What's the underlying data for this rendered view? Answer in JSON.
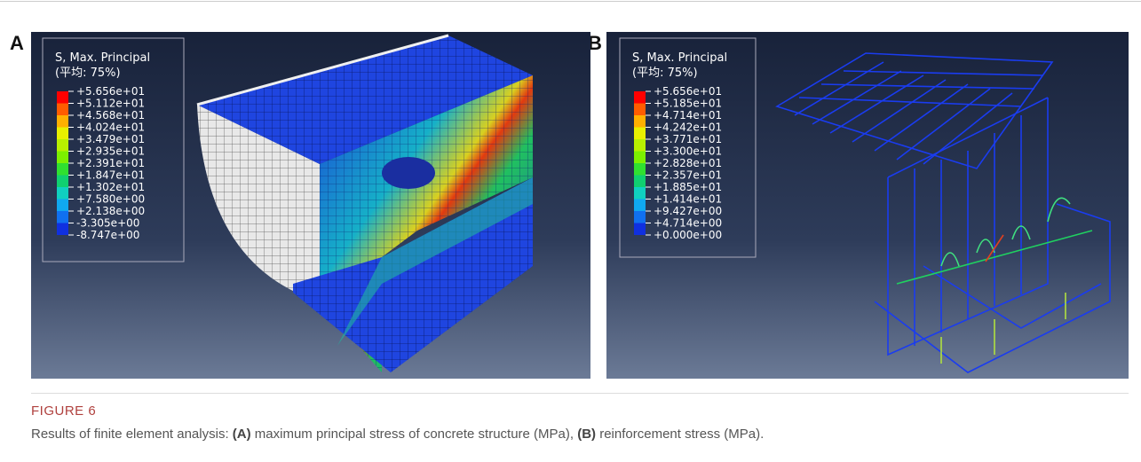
{
  "panels": [
    {
      "label": "A",
      "legend_title": [
        "S, Max. Principal",
        "(平均: 75%)"
      ],
      "legend_values": [
        "+5.656e+01",
        "+5.112e+01",
        "+4.568e+01",
        "+4.024e+01",
        "+3.479e+01",
        "+2.935e+01",
        "+2.391e+01",
        "+1.847e+01",
        "+1.302e+01",
        "+7.580e+00",
        "+2.138e+00",
        "-3.305e+00",
        "-8.747e+00"
      ]
    },
    {
      "label": "B",
      "legend_title": [
        "S, Max. Principal",
        "(平均: 75%)"
      ],
      "legend_values": [
        "+5.656e+01",
        "+5.185e+01",
        "+4.714e+01",
        "+4.242e+01",
        "+3.771e+01",
        "+3.300e+01",
        "+2.828e+01",
        "+2.357e+01",
        "+1.885e+01",
        "+1.414e+01",
        "+9.427e+00",
        "+4.714e+00",
        "+0.000e+00"
      ]
    }
  ],
  "caption": {
    "label": "FIGURE 6",
    "text_parts": [
      "Results of finite element analysis: ",
      "(A)",
      " maximum principal stress of concrete structure (MPa), ",
      "(B)",
      " reinforcement stress (MPa)."
    ]
  }
}
